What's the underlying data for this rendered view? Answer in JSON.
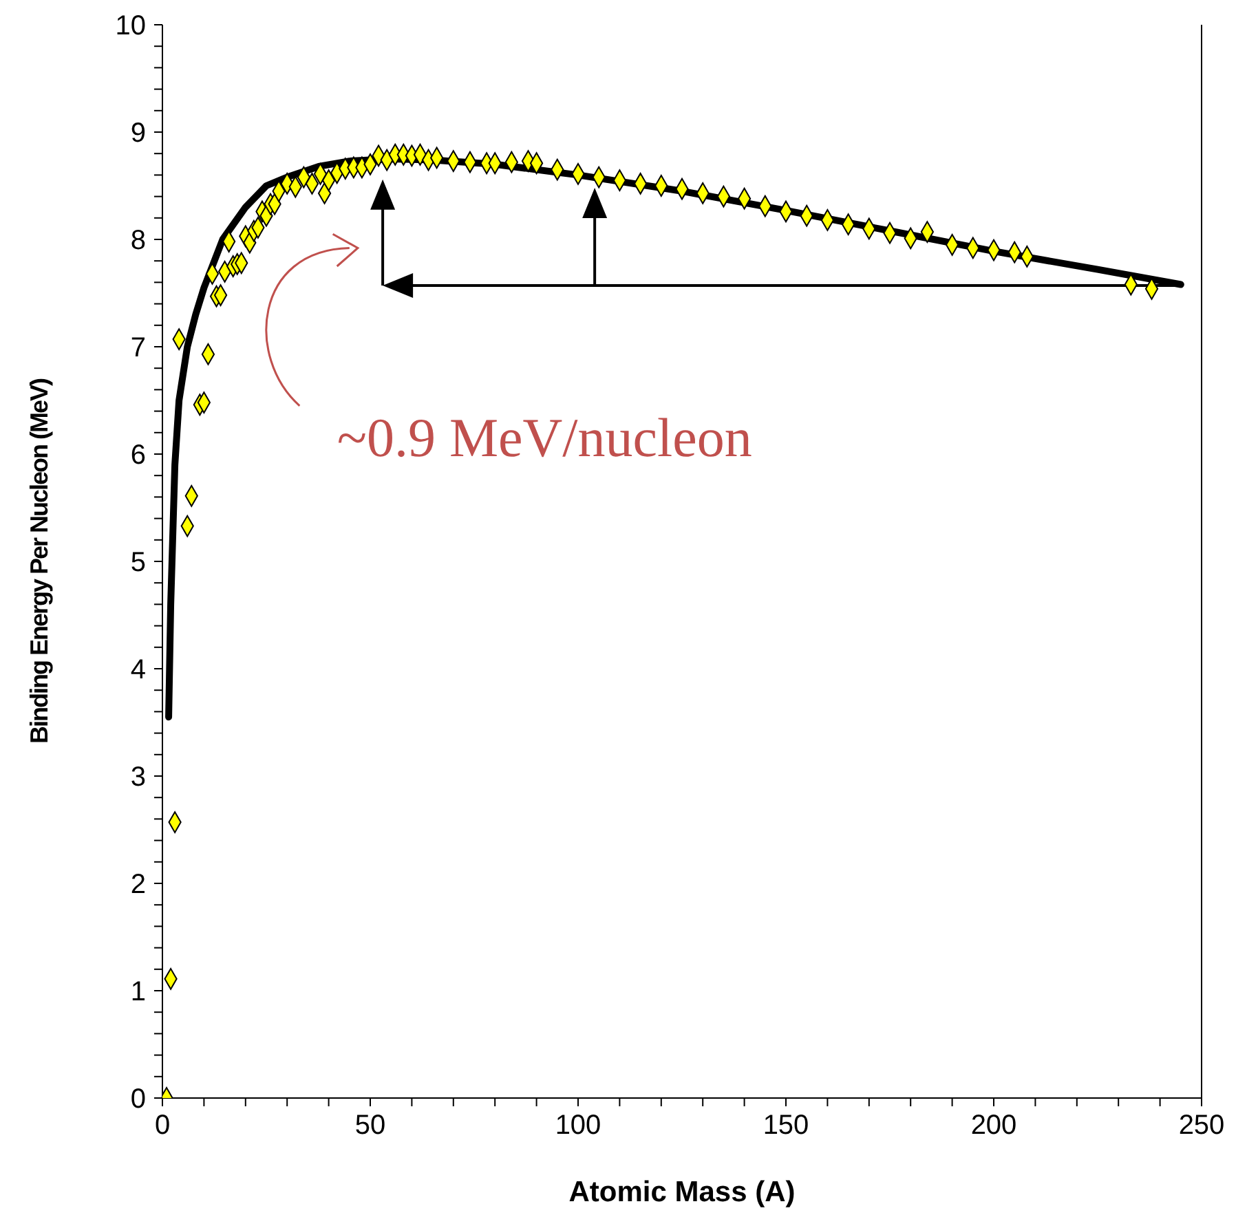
{
  "chart_data": {
    "type": "scatter",
    "xlabel": "Atomic Mass (A)",
    "ylabel": "Binding Energy Per Nucleon (MeV)",
    "annotations": [
      "~0.9 MeV/nucleon"
    ],
    "xlim": [
      0,
      250
    ],
    "ylim": [
      0,
      10
    ],
    "xticks": [
      0,
      {
        "value": 10,
        "label": null
      },
      {
        "value": 20,
        "label": null
      },
      {
        "value": 30,
        "label": null
      },
      {
        "value": 40,
        "label": null
      },
      50,
      {
        "value": 60,
        "label": null
      },
      {
        "value": 70,
        "label": null
      },
      {
        "value": 80,
        "label": null
      },
      {
        "value": 90,
        "label": null
      },
      100,
      {
        "value": 110,
        "label": null
      },
      {
        "value": 120,
        "label": null
      },
      {
        "value": 130,
        "label": null
      },
      {
        "value": 140,
        "label": null
      },
      150,
      {
        "value": 160,
        "label": null
      },
      {
        "value": 170,
        "label": null
      },
      {
        "value": 180,
        "label": null
      },
      {
        "value": 190,
        "label": null
      },
      200,
      {
        "value": 210,
        "label": null
      },
      {
        "value": 220,
        "label": null
      },
      {
        "value": 230,
        "label": null
      },
      {
        "value": 240,
        "label": null
      },
      250
    ],
    "yticks": [
      0,
      {
        "value": 0.2,
        "label": null
      },
      {
        "value": 0.4,
        "label": null
      },
      {
        "value": 0.6,
        "label": null
      },
      {
        "value": 0.8,
        "label": null
      },
      1,
      {
        "value": 1.2,
        "label": null
      },
      {
        "value": 1.4,
        "label": null
      },
      {
        "value": 1.6,
        "label": null
      },
      {
        "value": 1.8,
        "label": null
      },
      2,
      {
        "value": 2.2,
        "label": null
      },
      {
        "value": 2.4,
        "label": null
      },
      {
        "value": 2.6,
        "label": null
      },
      {
        "value": 2.8,
        "label": null
      },
      3,
      {
        "value": 3.2,
        "label": null
      },
      {
        "value": 3.4,
        "label": null
      },
      {
        "value": 3.6,
        "label": null
      },
      {
        "value": 3.8,
        "label": null
      },
      4,
      {
        "value": 4.2,
        "label": null
      },
      {
        "value": 4.4,
        "label": null
      },
      {
        "value": 4.6,
        "label": null
      },
      {
        "value": 4.8,
        "label": null
      },
      5,
      {
        "value": 5.2,
        "label": null
      },
      {
        "value": 5.4,
        "label": null
      },
      {
        "value": 5.6,
        "label": null
      },
      {
        "value": 5.8,
        "label": null
      },
      6,
      {
        "value": 6.2,
        "label": null
      },
      {
        "value": 6.4,
        "label": null
      },
      {
        "value": 6.6,
        "label": null
      },
      {
        "value": 6.8,
        "label": null
      },
      7,
      {
        "value": 7.2,
        "label": null
      },
      {
        "value": 7.4,
        "label": null
      },
      {
        "value": 7.6,
        "label": null
      },
      {
        "value": 7.8,
        "label": null
      },
      8,
      {
        "value": 8.2,
        "label": null
      },
      {
        "value": 8.4,
        "label": null
      },
      {
        "value": 8.6,
        "label": null
      },
      {
        "value": 8.8,
        "label": null
      },
      9,
      {
        "value": 9.2,
        "label": null
      },
      {
        "value": 9.4,
        "label": null
      },
      {
        "value": 9.6,
        "label": null
      },
      {
        "value": 9.8,
        "label": null
      },
      10
    ],
    "grid": false,
    "series": [
      {
        "type": "scatter",
        "color": "#ffff00",
        "marker": "diamond",
        "x": [
          1,
          2,
          3,
          4,
          6,
          7,
          9,
          10,
          11,
          12,
          13,
          14,
          15,
          16,
          17,
          18,
          19,
          20,
          21,
          22,
          23,
          24,
          25,
          26,
          27,
          28,
          30,
          32,
          34,
          36,
          38,
          39,
          40,
          42,
          44,
          46,
          48,
          50,
          52,
          54,
          56,
          58,
          60,
          62,
          64,
          66,
          70,
          74,
          78,
          80,
          84,
          88,
          90,
          95,
          100,
          105,
          110,
          115,
          120,
          125,
          130,
          135,
          140,
          145,
          150,
          155,
          160,
          165,
          170,
          175,
          180,
          184,
          190,
          195,
          200,
          205,
          208,
          233,
          238
        ],
        "values": [
          0,
          1.11,
          2.57,
          7.07,
          5.33,
          5.61,
          6.46,
          6.48,
          6.93,
          7.68,
          7.47,
          7.48,
          7.7,
          7.98,
          7.75,
          7.77,
          7.78,
          8.03,
          7.97,
          8.08,
          8.11,
          8.26,
          8.22,
          8.33,
          8.33,
          8.45,
          8.52,
          8.49,
          8.58,
          8.52,
          8.61,
          8.43,
          8.55,
          8.62,
          8.66,
          8.67,
          8.67,
          8.7,
          8.78,
          8.74,
          8.79,
          8.79,
          8.78,
          8.79,
          8.74,
          8.76,
          8.73,
          8.72,
          8.71,
          8.71,
          8.72,
          8.73,
          8.71,
          8.65,
          8.61,
          8.58,
          8.55,
          8.52,
          8.5,
          8.47,
          8.43,
          8.4,
          8.38,
          8.31,
          8.26,
          8.22,
          8.18,
          8.14,
          8.1,
          8.06,
          8.01,
          8.07,
          7.95,
          7.92,
          7.9,
          7.88,
          7.84,
          7.58,
          7.54
        ]
      },
      {
        "type": "line",
        "color": "#000000",
        "marker": "none",
        "line_style": "solid",
        "x": [
          1.5,
          2,
          3,
          4,
          6,
          8,
          10,
          14.5,
          20,
          25,
          30,
          37.6,
          45,
          55,
          65,
          80,
          100,
          125,
          150,
          175,
          200,
          225,
          245
        ],
        "values": [
          3.55,
          4.6,
          5.9,
          6.5,
          7.0,
          7.3,
          7.55,
          8.0,
          8.3,
          8.5,
          8.58,
          8.68,
          8.73,
          8.75,
          8.74,
          8.7,
          8.6,
          8.45,
          8.27,
          8.08,
          7.89,
          7.72,
          7.58
        ]
      }
    ]
  }
}
